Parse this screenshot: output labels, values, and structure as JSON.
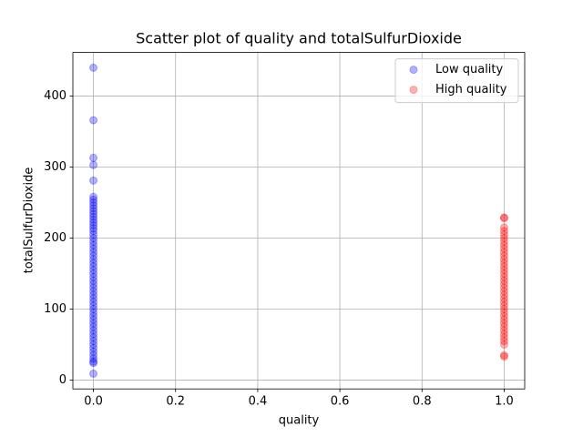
{
  "chart_data": {
    "type": "scatter",
    "title": "Scatter plot of quality and totalSulfurDioxide",
    "x_label": "quality",
    "y_label": "totalSulfurDioxide",
    "xlim": [
      -0.05,
      1.05
    ],
    "xticks": [
      {
        "value": 0,
        "label": "0.0"
      },
      {
        "value": 0.2,
        "label": "0.2"
      },
      {
        "value": 0.4,
        "label": "0.4"
      },
      {
        "value": 0.6,
        "label": "0.6"
      },
      {
        "value": 0.8,
        "label": "0.8"
      },
      {
        "value": 1,
        "label": "1.0"
      }
    ],
    "ylim": [
      -12.5,
      461.5
    ],
    "yticks": [
      0,
      100,
      200,
      300,
      400
    ],
    "grid": true,
    "legend": "upper right",
    "alpha": 0.3,
    "series": [
      {
        "name": "Low quality",
        "color": "#0000ff",
        "x": [
          0,
          0,
          0,
          0,
          0,
          0,
          0,
          0,
          0,
          0,
          0,
          0,
          0,
          0,
          0,
          0,
          0,
          0,
          0,
          0,
          0,
          0,
          0,
          0,
          0,
          0,
          0,
          0,
          0,
          0,
          0,
          0,
          0,
          0,
          0,
          0,
          0,
          0,
          0,
          0,
          0,
          0,
          0,
          0,
          0,
          0,
          0,
          0,
          0,
          0,
          0,
          0,
          0,
          0,
          0,
          0,
          0
        ],
        "y": [
          440,
          366,
          313,
          303,
          281,
          258,
          254,
          250,
          246,
          242,
          238,
          234,
          230,
          226,
          222,
          218,
          214,
          210,
          205,
          200,
          195,
          190,
          185,
          180,
          175,
          170,
          165,
          160,
          155,
          150,
          145,
          140,
          135,
          130,
          125,
          120,
          115,
          110,
          105,
          100,
          95,
          90,
          85,
          80,
          75,
          70,
          65,
          60,
          55,
          50,
          45,
          40,
          35,
          30,
          26,
          24,
          9
        ]
      },
      {
        "name": "High quality",
        "color": "#ff0000",
        "x": [
          1,
          1,
          1,
          1,
          1,
          1,
          1,
          1,
          1,
          1,
          1,
          1,
          1,
          1,
          1,
          1,
          1,
          1,
          1,
          1,
          1,
          1,
          1,
          1,
          1,
          1,
          1,
          1,
          1,
          1,
          1,
          1,
          1,
          1,
          1,
          1,
          1,
          1
        ],
        "y": [
          229,
          228,
          215,
          210,
          205,
          200,
          195,
          190,
          185,
          180,
          175,
          170,
          165,
          160,
          155,
          150,
          145,
          140,
          135,
          130,
          125,
          120,
          115,
          110,
          105,
          100,
          95,
          90,
          85,
          80,
          75,
          70,
          65,
          60,
          55,
          50,
          35,
          33
        ]
      }
    ]
  }
}
